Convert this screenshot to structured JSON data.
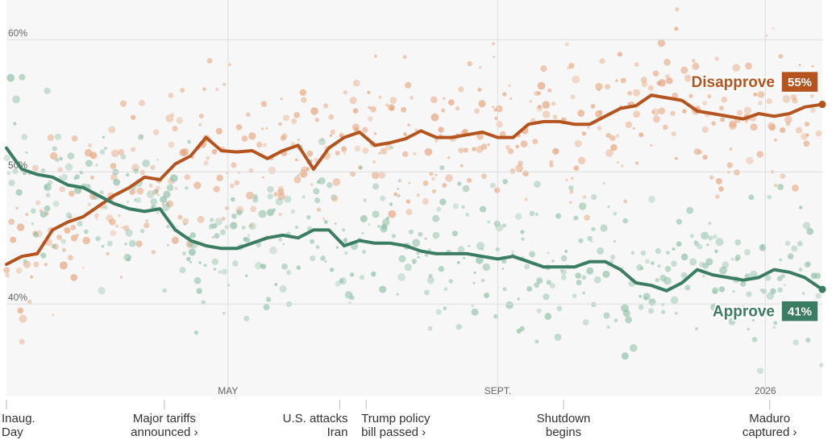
{
  "chart_data": {
    "type": "line",
    "title": "",
    "ylim": [
      33,
      63
    ],
    "y_ticks": [
      {
        "value": 60,
        "label": "60%"
      },
      {
        "value": 50,
        "label": "50%"
      },
      {
        "value": 40,
        "label": "40%"
      }
    ],
    "x_range": [
      "2025-01-20",
      "2026-01-27"
    ],
    "x_ticks": [
      {
        "date": "2025-05-01",
        "label": "MAY"
      },
      {
        "date": "2025-09-01",
        "label": "SEPT."
      },
      {
        "date": "2026-01-01",
        "label": "2026"
      }
    ],
    "events": [
      {
        "date": "2025-01-20",
        "lines": [
          "Inaug.",
          "Day"
        ],
        "align": "start",
        "link": false
      },
      {
        "date": "2025-04-02",
        "lines": [
          "Major tariffs",
          "announced ›"
        ],
        "align": "middle",
        "link": true
      },
      {
        "date": "2025-06-21",
        "lines": [
          "U.S. attacks",
          "Iran"
        ],
        "align": "end",
        "link": false
      },
      {
        "date": "2025-07-03",
        "lines": [
          "Trump policy",
          "bill passed ›"
        ],
        "align": "start",
        "link": true
      },
      {
        "date": "2025-10-01",
        "lines": [
          "Shutdown",
          "begins"
        ],
        "align": "middle",
        "link": false
      },
      {
        "date": "2026-01-03",
        "lines": [
          "Maduro",
          "captured ›"
        ],
        "align": "middle",
        "link": true
      }
    ],
    "series": [
      {
        "name": "Disapprove",
        "color": "#b5541f",
        "dot_color": "#e5a37c",
        "end_label": "55%",
        "points": [
          [
            "2025-01-20",
            43.0
          ],
          [
            "2025-01-27",
            43.6
          ],
          [
            "2025-02-03",
            43.8
          ],
          [
            "2025-02-10",
            45.6
          ],
          [
            "2025-02-17",
            46.2
          ],
          [
            "2025-02-24",
            46.6
          ],
          [
            "2025-03-03",
            47.4
          ],
          [
            "2025-03-10",
            48.2
          ],
          [
            "2025-03-17",
            48.8
          ],
          [
            "2025-03-24",
            49.6
          ],
          [
            "2025-03-31",
            49.4
          ],
          [
            "2025-04-07",
            50.6
          ],
          [
            "2025-04-14",
            51.2
          ],
          [
            "2025-04-21",
            52.6
          ],
          [
            "2025-04-28",
            51.6
          ],
          [
            "2025-05-05",
            51.5
          ],
          [
            "2025-05-12",
            51.6
          ],
          [
            "2025-05-19",
            51.0
          ],
          [
            "2025-05-26",
            51.6
          ],
          [
            "2025-06-02",
            52.0
          ],
          [
            "2025-06-09",
            50.2
          ],
          [
            "2025-06-16",
            51.8
          ],
          [
            "2025-06-23",
            52.6
          ],
          [
            "2025-06-30",
            53.0
          ],
          [
            "2025-07-07",
            52.0
          ],
          [
            "2025-07-14",
            52.2
          ],
          [
            "2025-07-21",
            52.5
          ],
          [
            "2025-07-28",
            53.1
          ],
          [
            "2025-08-04",
            52.6
          ],
          [
            "2025-08-11",
            52.6
          ],
          [
            "2025-08-18",
            52.8
          ],
          [
            "2025-08-25",
            53.0
          ],
          [
            "2025-09-01",
            52.6
          ],
          [
            "2025-09-08",
            52.6
          ],
          [
            "2025-09-15",
            53.6
          ],
          [
            "2025-09-22",
            53.8
          ],
          [
            "2025-09-29",
            53.8
          ],
          [
            "2025-10-06",
            53.6
          ],
          [
            "2025-10-13",
            53.6
          ],
          [
            "2025-10-20",
            54.2
          ],
          [
            "2025-10-27",
            54.8
          ],
          [
            "2025-11-03",
            55.0
          ],
          [
            "2025-11-10",
            55.8
          ],
          [
            "2025-11-17",
            55.6
          ],
          [
            "2025-11-24",
            55.4
          ],
          [
            "2025-12-01",
            54.6
          ],
          [
            "2025-12-08",
            54.4
          ],
          [
            "2025-12-15",
            54.2
          ],
          [
            "2025-12-22",
            54.0
          ],
          [
            "2025-12-29",
            54.4
          ],
          [
            "2026-01-05",
            54.2
          ],
          [
            "2026-01-12",
            54.4
          ],
          [
            "2026-01-19",
            54.9
          ],
          [
            "2026-01-27",
            55.1
          ]
        ]
      },
      {
        "name": "Approve",
        "color": "#3b7d62",
        "dot_color": "#8fbfa6",
        "end_label": "41%",
        "points": [
          [
            "2025-01-20",
            51.8
          ],
          [
            "2025-01-27",
            50.2
          ],
          [
            "2025-02-03",
            49.8
          ],
          [
            "2025-02-10",
            49.6
          ],
          [
            "2025-02-17",
            49.0
          ],
          [
            "2025-02-24",
            48.8
          ],
          [
            "2025-03-03",
            48.2
          ],
          [
            "2025-03-10",
            47.6
          ],
          [
            "2025-03-17",
            47.2
          ],
          [
            "2025-03-24",
            47.0
          ],
          [
            "2025-03-31",
            47.2
          ],
          [
            "2025-04-07",
            45.6
          ],
          [
            "2025-04-14",
            44.8
          ],
          [
            "2025-04-21",
            44.4
          ],
          [
            "2025-04-28",
            44.2
          ],
          [
            "2025-05-05",
            44.2
          ],
          [
            "2025-05-12",
            44.6
          ],
          [
            "2025-05-19",
            45.0
          ],
          [
            "2025-05-26",
            45.2
          ],
          [
            "2025-06-02",
            45.0
          ],
          [
            "2025-06-09",
            45.6
          ],
          [
            "2025-06-16",
            45.6
          ],
          [
            "2025-06-23",
            44.4
          ],
          [
            "2025-06-30",
            44.8
          ],
          [
            "2025-07-07",
            44.6
          ],
          [
            "2025-07-14",
            44.6
          ],
          [
            "2025-07-21",
            44.4
          ],
          [
            "2025-07-28",
            44.0
          ],
          [
            "2025-08-04",
            43.8
          ],
          [
            "2025-08-11",
            43.8
          ],
          [
            "2025-08-18",
            43.8
          ],
          [
            "2025-08-25",
            43.6
          ],
          [
            "2025-09-01",
            43.4
          ],
          [
            "2025-09-08",
            43.6
          ],
          [
            "2025-09-15",
            43.2
          ],
          [
            "2025-09-22",
            42.8
          ],
          [
            "2025-09-29",
            42.8
          ],
          [
            "2025-10-06",
            42.8
          ],
          [
            "2025-10-13",
            43.2
          ],
          [
            "2025-10-20",
            43.2
          ],
          [
            "2025-10-27",
            42.6
          ],
          [
            "2025-11-03",
            41.6
          ],
          [
            "2025-11-10",
            41.4
          ],
          [
            "2025-11-17",
            41.0
          ],
          [
            "2025-11-24",
            41.6
          ],
          [
            "2025-12-01",
            42.6
          ],
          [
            "2025-12-08",
            42.2
          ],
          [
            "2025-12-15",
            42.0
          ],
          [
            "2025-12-22",
            41.8
          ],
          [
            "2025-12-29",
            42.0
          ],
          [
            "2026-01-05",
            42.6
          ],
          [
            "2026-01-12",
            42.4
          ],
          [
            "2026-01-19",
            42.0
          ],
          [
            "2026-01-27",
            41.1
          ]
        ]
      }
    ]
  }
}
